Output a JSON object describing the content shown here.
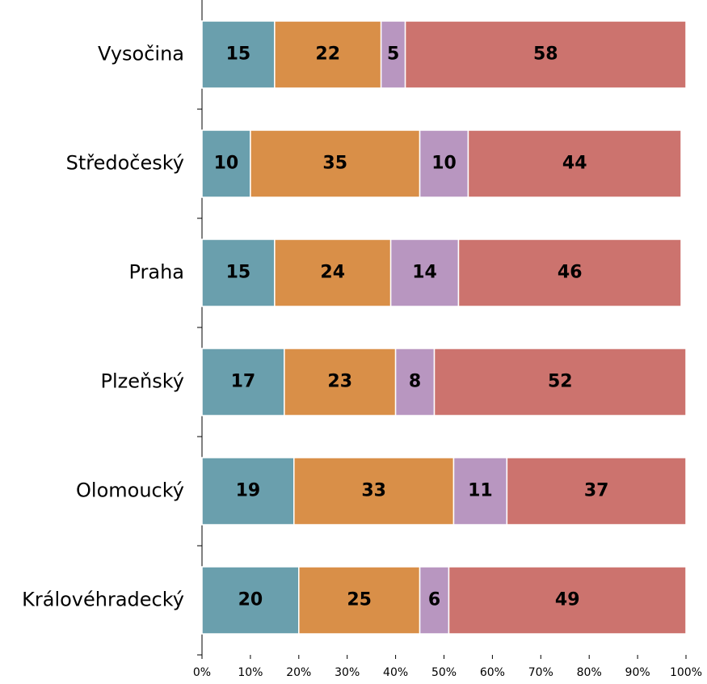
{
  "chart_data": {
    "type": "stacked-bar-horizontal",
    "categories": [
      "Vysočina",
      "Středočeský",
      "Praha",
      "Plzeňský",
      "Olomoucký",
      "Královéhradecký"
    ],
    "series": [
      {
        "color": "#6a9fad",
        "values": [
          15,
          10,
          15,
          17,
          19,
          20
        ]
      },
      {
        "color": "#d98f48",
        "values": [
          22,
          35,
          24,
          23,
          33,
          25
        ]
      },
      {
        "color": "#b896c0",
        "values": [
          5,
          10,
          14,
          8,
          11,
          6
        ]
      },
      {
        "color": "#cc736e",
        "values": [
          58,
          44,
          46,
          52,
          37,
          49
        ]
      }
    ],
    "xlim": [
      0,
      100
    ],
    "xticks": [
      {
        "value": 0,
        "label": "0%"
      },
      {
        "value": 10,
        "label": "10%"
      },
      {
        "value": 20,
        "label": "20%"
      },
      {
        "value": 30,
        "label": "30%"
      },
      {
        "value": 40,
        "label": "40%"
      },
      {
        "value": 50,
        "label": "50%"
      },
      {
        "value": 60,
        "label": "60%"
      },
      {
        "value": 70,
        "label": "70%"
      },
      {
        "value": 80,
        "label": "80%"
      },
      {
        "value": 90,
        "label": "90%"
      },
      {
        "value": 100,
        "label": "100%"
      }
    ]
  }
}
